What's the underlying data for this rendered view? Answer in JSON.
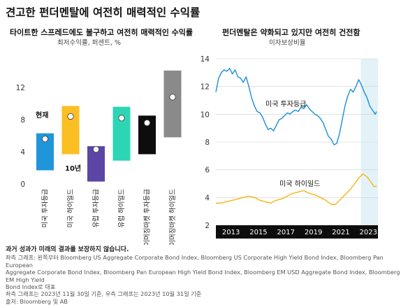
{
  "title": "견고한 펀더멘탈에 여전히 매력적인 수익률",
  "chart_data": [
    {
      "type": "bar",
      "title": "타이트한 스프레드에도 불구하고 여전히 매력적인 수익률",
      "subtitle": "최저수익률, 퍼센트, %",
      "categories": [
        "미국 투자등급",
        "미국 하이일드",
        "유럽 투자등급",
        "유럽 하이일드",
        "이머징마켓 투자등급",
        "이머징마켓 하이일드"
      ],
      "ranges": [
        [
          1.7,
          6.3
        ],
        [
          3.7,
          9.7
        ],
        [
          0.3,
          4.7
        ],
        [
          2.9,
          9.6
        ],
        [
          3.7,
          8.5
        ],
        [
          5.8,
          14.1
        ]
      ],
      "current": [
        5.6,
        8.4,
        4.3,
        8.2,
        7.6,
        10.8
      ],
      "colors": [
        "#1f96d9",
        "#fbbf24",
        "#5b46a6",
        "#2cd6b4",
        "#0d0d0d",
        "#8a8a8a"
      ],
      "annotations": {
        "current_label": "현재",
        "range_label": "10년"
      },
      "yticks": [
        "0",
        "4",
        "8",
        "12"
      ],
      "ylim": [
        0,
        15
      ]
    },
    {
      "type": "line",
      "title": "펀더멘탈은 약화되고 있지만 여전히 건전함",
      "subtitle": "이자보상비율",
      "x_ticks": [
        "2013",
        "2015",
        "2017",
        "2019",
        "2021",
        "2023"
      ],
      "yticks": [
        "2",
        "4",
        "6",
        "8",
        "10",
        "12",
        "14"
      ],
      "ylim": [
        2,
        14
      ],
      "xlim": [
        2012.2,
        2024.0
      ],
      "highlight_start": 2022.75,
      "series": [
        {
          "name": "미국 투자등급",
          "color": "#1a8fd6",
          "points": [
            [
              2012.2,
              11.6
            ],
            [
              2012.4,
              12.6
            ],
            [
              2012.6,
              13.0
            ],
            [
              2012.8,
              13.2
            ],
            [
              2013.0,
              13.1
            ],
            [
              2013.2,
              13.3
            ],
            [
              2013.4,
              12.9
            ],
            [
              2013.6,
              13.2
            ],
            [
              2013.8,
              12.7
            ],
            [
              2014.0,
              12.6
            ],
            [
              2014.2,
              12.3
            ],
            [
              2014.4,
              12.7
            ],
            [
              2014.6,
              12.0
            ],
            [
              2014.8,
              11.2
            ],
            [
              2015.0,
              10.6
            ],
            [
              2015.2,
              10.2
            ],
            [
              2015.4,
              10.1
            ],
            [
              2015.6,
              9.8
            ],
            [
              2015.8,
              9.3
            ],
            [
              2016.0,
              8.9
            ],
            [
              2016.2,
              9.0
            ],
            [
              2016.4,
              8.8
            ],
            [
              2016.6,
              9.2
            ],
            [
              2016.8,
              9.6
            ],
            [
              2017.0,
              9.7
            ],
            [
              2017.2,
              9.9
            ],
            [
              2017.4,
              10.1
            ],
            [
              2017.6,
              10.0
            ],
            [
              2017.8,
              10.2
            ],
            [
              2018.0,
              10.3
            ],
            [
              2018.2,
              10.2
            ],
            [
              2018.4,
              10.5
            ],
            [
              2018.6,
              10.4
            ],
            [
              2018.8,
              10.7
            ],
            [
              2019.0,
              10.4
            ],
            [
              2019.2,
              10.2
            ],
            [
              2019.4,
              10.0
            ],
            [
              2019.6,
              9.9
            ],
            [
              2019.8,
              9.7
            ],
            [
              2020.0,
              9.4
            ],
            [
              2020.2,
              8.9
            ],
            [
              2020.4,
              8.4
            ],
            [
              2020.6,
              8.2
            ],
            [
              2020.8,
              7.8
            ],
            [
              2021.0,
              7.9
            ],
            [
              2021.2,
              8.6
            ],
            [
              2021.4,
              9.6
            ],
            [
              2021.6,
              10.6
            ],
            [
              2021.8,
              11.3
            ],
            [
              2022.0,
              11.8
            ],
            [
              2022.2,
              11.6
            ],
            [
              2022.4,
              12.0
            ],
            [
              2022.6,
              12.5
            ],
            [
              2022.8,
              12.1
            ],
            [
              2023.0,
              11.6
            ],
            [
              2023.2,
              11.2
            ],
            [
              2023.4,
              10.6
            ],
            [
              2023.6,
              10.3
            ],
            [
              2023.8,
              10.0
            ],
            [
              2023.9,
              10.2
            ]
          ]
        },
        {
          "name": "미국 하이일드",
          "color": "#f5b511",
          "points": [
            [
              2012.2,
              3.6
            ],
            [
              2012.6,
              3.6
            ],
            [
              2013.0,
              3.7
            ],
            [
              2013.4,
              3.8
            ],
            [
              2013.8,
              3.9
            ],
            [
              2014.2,
              4.0
            ],
            [
              2014.6,
              4.1
            ],
            [
              2015.0,
              4.0
            ],
            [
              2015.4,
              3.8
            ],
            [
              2015.8,
              3.7
            ],
            [
              2016.2,
              3.6
            ],
            [
              2016.6,
              3.8
            ],
            [
              2017.0,
              3.9
            ],
            [
              2017.4,
              4.1
            ],
            [
              2017.8,
              4.3
            ],
            [
              2018.2,
              4.4
            ],
            [
              2018.6,
              4.5
            ],
            [
              2019.0,
              4.3
            ],
            [
              2019.4,
              4.2
            ],
            [
              2019.8,
              4.0
            ],
            [
              2020.2,
              3.8
            ],
            [
              2020.6,
              3.5
            ],
            [
              2020.9,
              3.5
            ],
            [
              2021.2,
              3.8
            ],
            [
              2021.6,
              4.2
            ],
            [
              2022.0,
              4.6
            ],
            [
              2022.3,
              5.0
            ],
            [
              2022.6,
              5.4
            ],
            [
              2022.9,
              5.7
            ],
            [
              2023.2,
              5.5
            ],
            [
              2023.5,
              5.1
            ],
            [
              2023.7,
              4.8
            ],
            [
              2023.9,
              4.8
            ]
          ]
        }
      ]
    }
  ],
  "footer": {
    "note": "과거 성과가 미래의 결과를 보장하지 않습니다.",
    "lines": [
      "좌측 그래프: 왼쪽부터 Bloomberg US Aggregate Corporate Bond Index, Bloomberg US Corporate High Yield Bond Index, Bloomberg Pan European",
      "Aggregate Corporate Bond Index, Bloomberg Pan European High Yield Bond Index, Bloomberg EM USD Aggregate Bond Index, Bloomberg EM High Yield",
      "Bond Index로 대표",
      "좌측 그래프는 2023년 11월 30일 기준, 우측 그래프는 2023년 10월 31일 기준",
      "출처: Bloomberg 및 AB"
    ]
  }
}
